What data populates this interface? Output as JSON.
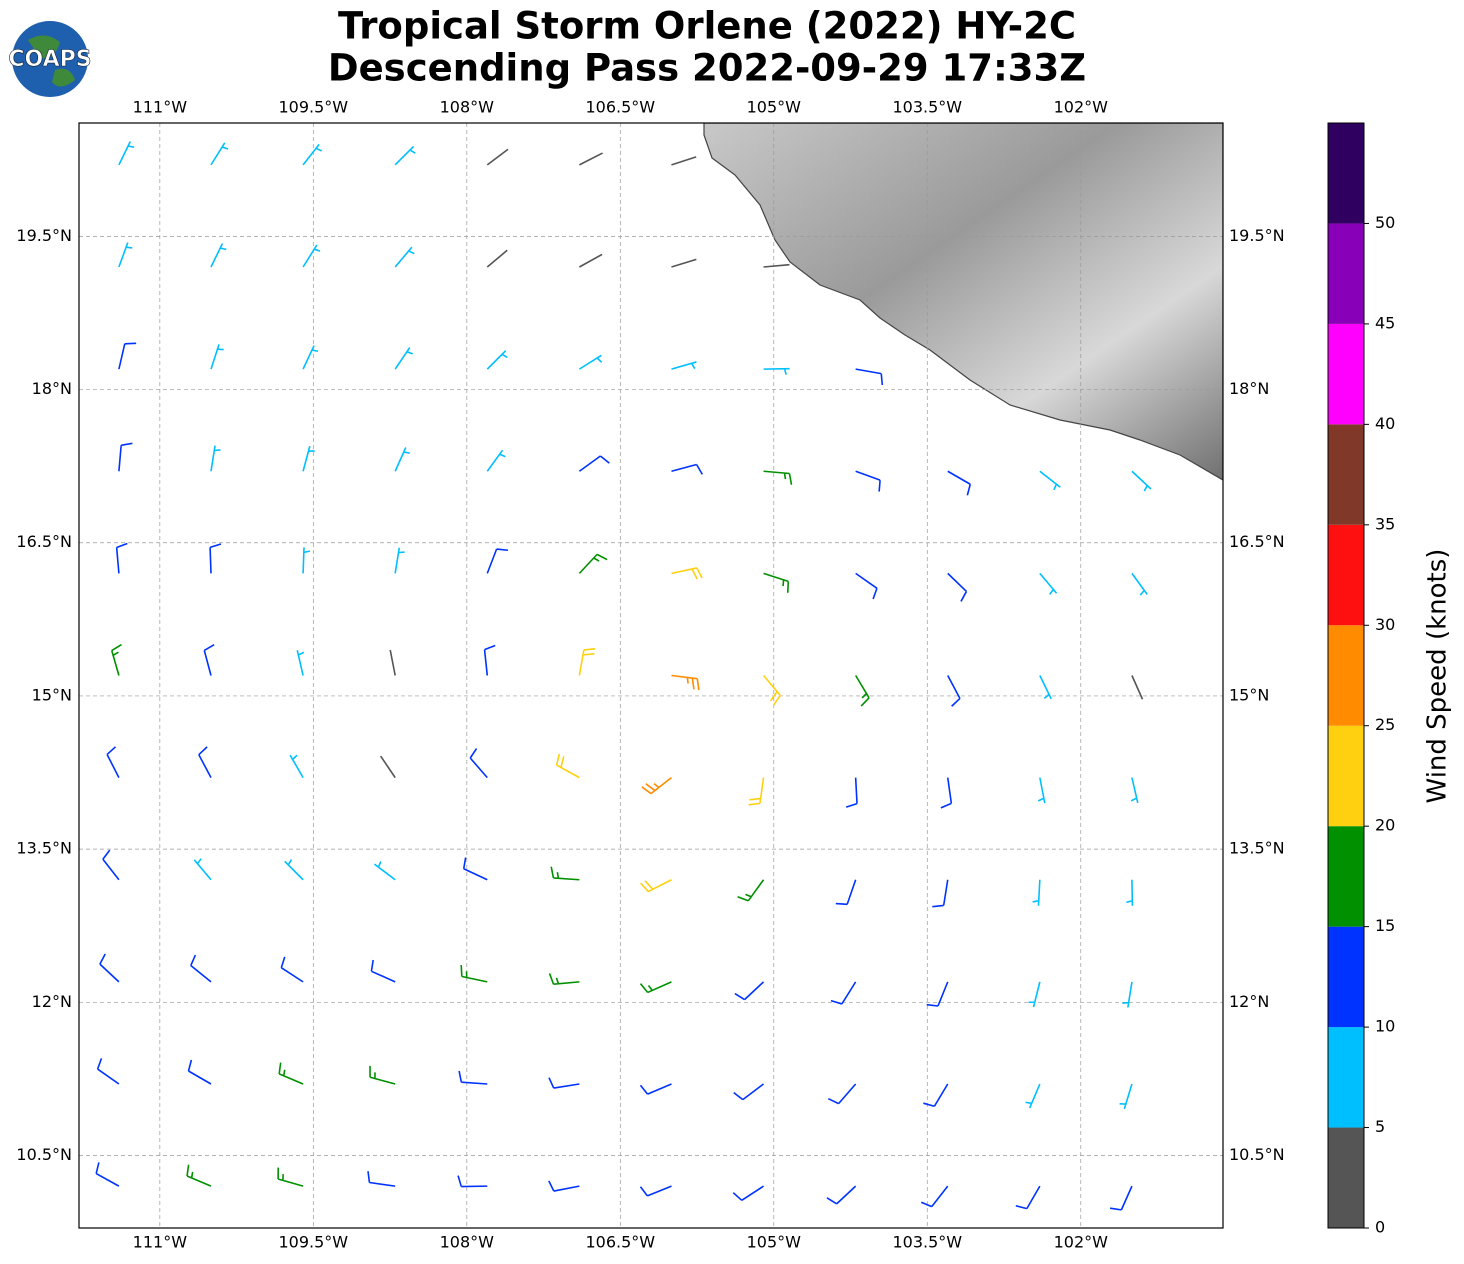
{
  "logo": "COAPS",
  "title": "Tropical Storm Orlene (2022) HY-2C",
  "subtitle": "Descending Pass 2022-09-29 17:33Z",
  "map": {
    "xlim": [
      -111.79,
      -100.61
    ],
    "ylim": [
      9.79,
      20.61
    ],
    "xticks": [
      {
        "value": -111,
        "label": "111°W"
      },
      {
        "value": -109.5,
        "label": "109.5°W"
      },
      {
        "value": -108,
        "label": "108°W"
      },
      {
        "value": -106.5,
        "label": "106.5°W"
      },
      {
        "value": -105,
        "label": "105°W"
      },
      {
        "value": -103.5,
        "label": "103.5°W"
      },
      {
        "value": -102,
        "label": "102°W"
      }
    ],
    "yticks": [
      {
        "value": 10.5,
        "label": "10.5°N"
      },
      {
        "value": 12,
        "label": "12°N"
      },
      {
        "value": 13.5,
        "label": "13.5°N"
      },
      {
        "value": 15,
        "label": "15°N"
      },
      {
        "value": 16.5,
        "label": "16.5°N"
      },
      {
        "value": 18,
        "label": "18°N"
      },
      {
        "value": 19.5,
        "label": "19.5°N"
      }
    ],
    "grid": true,
    "barbs": {
      "lons": [
        -111.4,
        -110.5,
        -109.6,
        -108.7,
        -107.8,
        -106.9,
        -106.0,
        -105.1,
        -104.2,
        -103.3,
        -102.4,
        -101.5
      ],
      "lats": [
        20.2,
        19.2,
        18.2,
        17.2,
        16.2,
        15.2,
        14.2,
        13.2,
        12.2,
        11.2,
        10.2
      ],
      "speeds": [
        [
          7,
          7,
          7,
          7,
          3,
          3,
          3,
          null,
          null,
          null,
          null,
          null
        ],
        [
          8,
          7,
          7,
          7,
          3,
          3,
          3,
          4,
          null,
          null,
          null,
          null
        ],
        [
          11,
          8,
          7,
          7,
          7,
          7,
          7,
          8,
          12,
          null,
          null,
          null
        ],
        [
          12,
          9,
          8,
          8,
          8,
          12,
          14,
          17,
          13,
          12,
          8,
          7
        ],
        [
          12,
          12,
          9,
          8,
          14,
          18,
          22,
          17,
          13,
          11,
          9,
          8
        ],
        [
          16,
          13,
          9,
          4,
          12,
          22,
          27,
          22,
          15,
          11,
          8,
          4
        ],
        [
          12,
          12,
          8,
          3,
          10,
          24,
          25,
          20,
          13,
          10,
          9,
          8
        ],
        [
          12,
          9,
          9,
          9,
          12,
          17,
          22,
          17,
          12,
          10,
          9,
          8
        ],
        [
          10,
          12,
          12,
          14,
          17,
          17,
          17,
          13,
          12,
          10,
          8,
          8
        ],
        [
          12,
          14,
          17,
          17,
          13,
          12,
          12,
          12,
          12,
          10,
          8,
          8
        ],
        [
          12,
          17,
          17,
          12,
          12,
          12,
          12,
          12,
          12,
          10,
          10,
          10
        ]
      ],
      "directions": [
        [
          26,
          32,
          38,
          45,
          53,
          63,
          72,
          null,
          null,
          null,
          null,
          null
        ],
        [
          20,
          26,
          32,
          40,
          50,
          61,
          73,
          85,
          null,
          null,
          null,
          null
        ],
        [
          13,
          18,
          25,
          34,
          45,
          58,
          74,
          89,
          100,
          null,
          null,
          null
        ],
        [
          5,
          9,
          15,
          24,
          36,
          54,
          75,
          95,
          110,
          120,
          128,
          133
        ],
        [
          355,
          358,
          2,
          9,
          21,
          43,
          78,
          108,
          125,
          134,
          140,
          144
        ],
        [
          344,
          345,
          347,
          349,
          354,
          10,
          97,
          140,
          149,
          152,
          154,
          156
        ],
        [
          333,
          332,
          330,
          326,
          319,
          299,
          232,
          188,
          177,
          172,
          169,
          167
        ],
        [
          322,
          320,
          315,
          307,
          295,
          274,
          243,
          216,
          199,
          189,
          183,
          179
        ],
        [
          313,
          309,
          303,
          294,
          282,
          265,
          246,
          227,
          212,
          202,
          194,
          189
        ],
        [
          305,
          300,
          293,
          285,
          274,
          261,
          247,
          233,
          221,
          211,
          203,
          197
        ],
        [
          299,
          293,
          286,
          278,
          269,
          259,
          248,
          237,
          227,
          218,
          210,
          204
        ]
      ]
    }
  },
  "colorbar": {
    "label": "Wind Speed (knots)",
    "bounds": [
      0,
      5,
      10,
      15,
      20,
      25,
      30,
      35,
      40,
      45,
      50,
      55
    ],
    "colors": [
      "#555555",
      "#00bfff",
      "#0033ff",
      "#009000",
      "#ffd010",
      "#ff8c00",
      "#ff1010",
      "#803828",
      "#ff00ff",
      "#8800b8",
      "#300060"
    ],
    "ticks": [
      0,
      5,
      10,
      15,
      20,
      25,
      30,
      35,
      40,
      45,
      50
    ]
  }
}
